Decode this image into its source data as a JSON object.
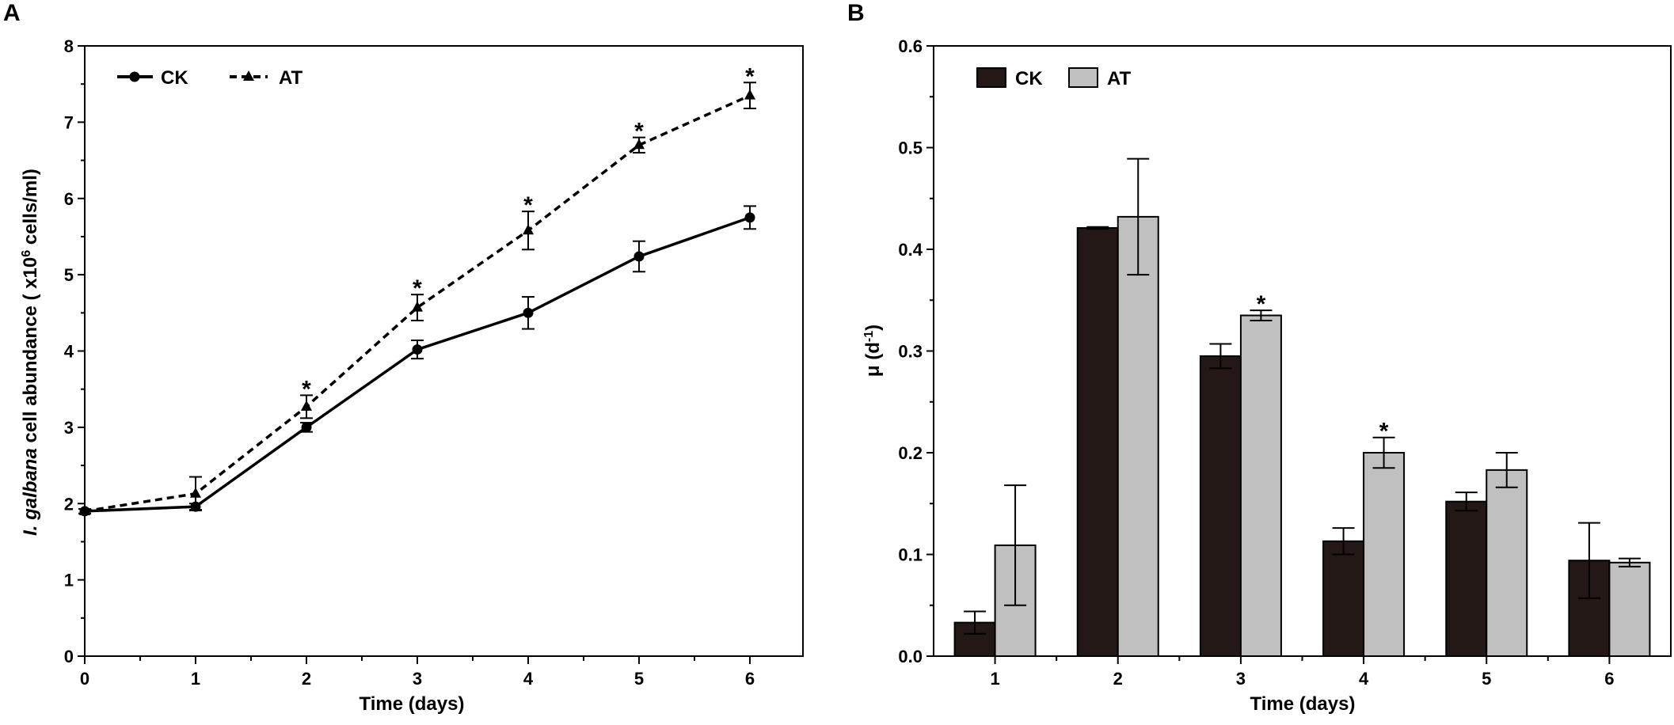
{
  "chart_data": [
    {
      "panel": "A",
      "type": "line",
      "title": "",
      "xlabel": "Time (days)",
      "ylabel": {
        "species": "I. galbana",
        "prefix": " cell abundance ( x10",
        "superscript": "6",
        "suffix": " cells/ml)"
      },
      "x": [
        0,
        1,
        2,
        3,
        4,
        5,
        6
      ],
      "xlim": [
        0,
        6.5
      ],
      "ylim": [
        0,
        8
      ],
      "xticks": [
        "0",
        "1",
        "2",
        "3",
        "4",
        "5",
        "6"
      ],
      "yticks": [
        "0",
        "1",
        "2",
        "3",
        "4",
        "5",
        "6",
        "7",
        "8"
      ],
      "legend_position": "top-left",
      "series": [
        {
          "name": "CK",
          "style": "solid",
          "marker": "circle",
          "values": [
            1.9,
            1.96,
            3.0,
            4.02,
            4.5,
            5.24,
            5.75
          ],
          "errors": [
            0.03,
            0.04,
            0.06,
            0.12,
            0.21,
            0.2,
            0.15
          ]
        },
        {
          "name": "AT",
          "style": "dashed",
          "marker": "triangle",
          "values": [
            1.9,
            2.13,
            3.27,
            4.57,
            5.58,
            6.7,
            7.35
          ],
          "errors": [
            0.03,
            0.22,
            0.15,
            0.17,
            0.25,
            0.1,
            0.17
          ]
        }
      ],
      "significance": [
        "",
        "",
        "*",
        "*",
        "*",
        "*",
        "*"
      ]
    },
    {
      "panel": "B",
      "type": "bar",
      "title": "",
      "xlabel": "Time (days)",
      "ylabel": {
        "prefix": "μ (d",
        "superscript": "-1",
        "suffix": ")"
      },
      "categories": [
        "1",
        "2",
        "3",
        "4",
        "5",
        "6"
      ],
      "ylim": [
        0,
        0.6
      ],
      "yticks": [
        "0.0",
        "0.1",
        "0.2",
        "0.3",
        "0.4",
        "0.5",
        "0.6"
      ],
      "legend_position": "top-left",
      "series": [
        {
          "name": "CK",
          "color": "#231815",
          "values": [
            0.033,
            0.421,
            0.295,
            0.113,
            0.152,
            0.094
          ],
          "errors": [
            0.011,
            0.001,
            0.012,
            0.013,
            0.009,
            0.037
          ]
        },
        {
          "name": "AT",
          "color": "#c0c0c0",
          "values": [
            0.109,
            0.432,
            0.335,
            0.2,
            0.183,
            0.092
          ],
          "errors": [
            0.059,
            0.057,
            0.005,
            0.015,
            0.017,
            0.004
          ]
        }
      ],
      "significance": [
        "",
        "",
        "*",
        "*",
        "",
        ""
      ]
    }
  ]
}
